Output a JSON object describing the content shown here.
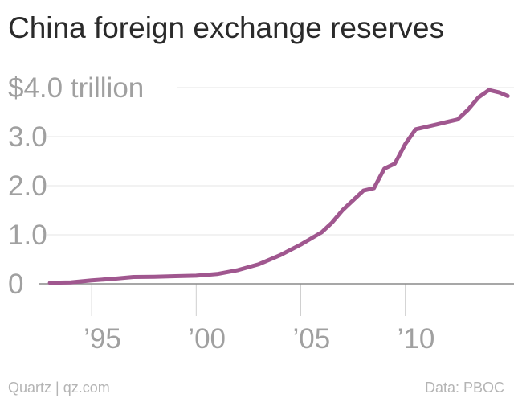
{
  "header": {
    "title": "China foreign exchange reserves"
  },
  "footer": {
    "credit": "Quartz | qz.com",
    "source": "Data: PBOC"
  },
  "colors": {
    "line": "#a0578f",
    "grid": "#e6e6e6",
    "baseline": "#8a8a8a",
    "tick_text": "#a0a0a0"
  },
  "chart_data": {
    "type": "line",
    "title": "China foreign exchange reserves",
    "xlabel": "",
    "ylabel": "",
    "xlim": [
      1991,
      2015.2
    ],
    "ylim": [
      0,
      4.0
    ],
    "y_ticks": [
      {
        "value": 0,
        "label": "0"
      },
      {
        "value": 1.0,
        "label": "1.0"
      },
      {
        "value": 2.0,
        "label": "2.0"
      },
      {
        "value": 3.0,
        "label": "3.0"
      },
      {
        "value": 4.0,
        "label": "$4.0 trillion"
      }
    ],
    "x_ticks": [
      {
        "value": 1995,
        "label": "’95"
      },
      {
        "value": 2000,
        "label": "’00"
      },
      {
        "value": 2005,
        "label": "’05"
      },
      {
        "value": 2010,
        "label": "’10"
      }
    ],
    "grid": true,
    "legend": "none",
    "series": [
      {
        "x": [
          1993.0,
          1994.0,
          1995.0,
          1996.0,
          1997.0,
          1998.0,
          1999.0,
          2000.0,
          2001.0,
          2002.0,
          2003.0,
          2004.0,
          2005.0,
          2006.0,
          2006.5,
          2007.0,
          2007.5,
          2008.0,
          2008.5,
          2009.0,
          2009.5,
          2010.0,
          2010.5,
          2011.0,
          2011.5,
          2012.0,
          2012.5,
          2013.0,
          2013.5,
          2014.0,
          2014.5,
          2014.9
        ],
        "y": [
          0.02,
          0.03,
          0.07,
          0.1,
          0.14,
          0.145,
          0.155,
          0.165,
          0.2,
          0.28,
          0.4,
          0.58,
          0.8,
          1.05,
          1.25,
          1.5,
          1.7,
          1.9,
          1.95,
          2.35,
          2.45,
          2.85,
          3.15,
          3.2,
          3.25,
          3.3,
          3.35,
          3.55,
          3.8,
          3.95,
          3.9,
          3.83
        ]
      }
    ]
  }
}
